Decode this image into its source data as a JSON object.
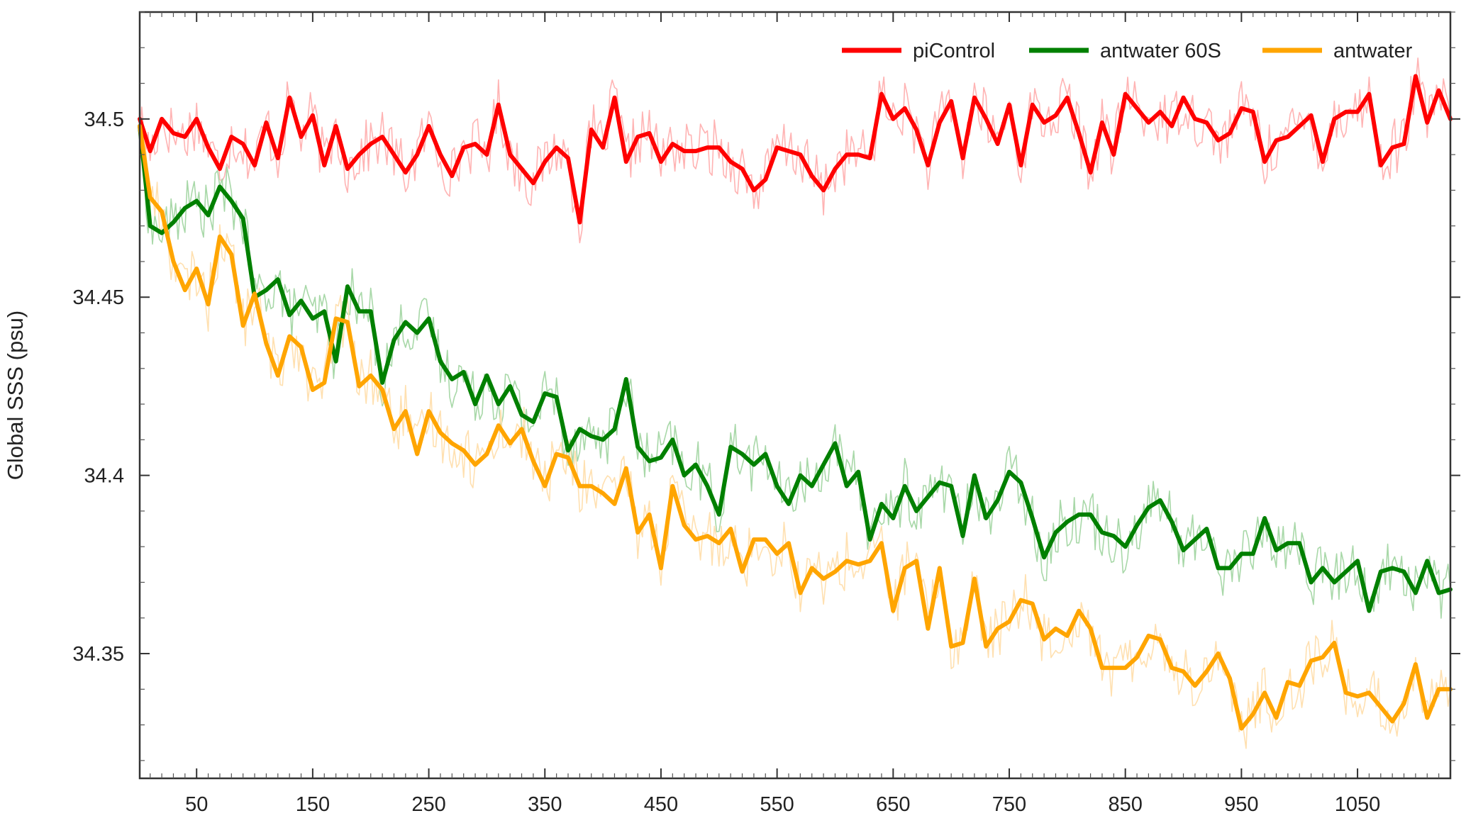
{
  "chart_data": {
    "type": "line",
    "title": "",
    "xlabel": "",
    "ylabel": "Global SSS (psu)",
    "xlim": [
      1,
      1130
    ],
    "ylim": [
      34.315,
      34.53
    ],
    "x_ticks": [
      50,
      150,
      250,
      350,
      450,
      550,
      650,
      750,
      850,
      950,
      1050
    ],
    "y_ticks": [
      34.35,
      34.4,
      34.45,
      34.5
    ],
    "y_tick_labels": [
      "34.35",
      "34.4",
      "34.45",
      "34.5"
    ],
    "grid": false,
    "legend_position": "top-right",
    "series": [
      {
        "name": "piControl",
        "color": "#ff0000",
        "faint_color": "#ffb3b3",
        "x": [
          1,
          10,
          20,
          30,
          40,
          50,
          60,
          70,
          80,
          90,
          100,
          110,
          120,
          130,
          140,
          150,
          160,
          170,
          180,
          190,
          200,
          210,
          220,
          230,
          240,
          250,
          260,
          270,
          280,
          290,
          300,
          310,
          320,
          330,
          340,
          350,
          360,
          370,
          380,
          390,
          400,
          410,
          420,
          430,
          440,
          450,
          460,
          470,
          480,
          490,
          500,
          510,
          520,
          530,
          540,
          550,
          560,
          570,
          580,
          590,
          600,
          610,
          620,
          630,
          640,
          650,
          660,
          670,
          680,
          690,
          700,
          710,
          720,
          730,
          740,
          750,
          760,
          770,
          780,
          790,
          800,
          810,
          820,
          830,
          840,
          850,
          860,
          870,
          880,
          890,
          900,
          910,
          920,
          930,
          940,
          950,
          960,
          970,
          980,
          990,
          1000,
          1010,
          1020,
          1030,
          1040,
          1050,
          1060,
          1070,
          1080,
          1090,
          1100,
          1110,
          1120,
          1130
        ],
        "values": [
          34.5,
          34.491,
          34.5,
          34.496,
          34.495,
          34.5,
          34.492,
          34.486,
          34.495,
          34.493,
          34.487,
          34.499,
          34.489,
          34.506,
          34.495,
          34.501,
          34.487,
          34.498,
          34.486,
          34.49,
          34.493,
          34.495,
          34.49,
          34.485,
          34.49,
          34.498,
          34.49,
          34.484,
          34.492,
          34.493,
          34.49,
          34.504,
          34.49,
          34.486,
          34.482,
          34.488,
          34.492,
          34.489,
          34.471,
          34.497,
          34.492,
          34.506,
          34.488,
          34.495,
          34.496,
          34.488,
          34.493,
          34.491,
          34.491,
          34.492,
          34.492,
          34.488,
          34.486,
          34.48,
          34.483,
          34.492,
          34.491,
          34.49,
          34.484,
          34.48,
          34.486,
          34.49,
          34.49,
          34.489,
          34.507,
          34.5,
          34.503,
          34.497,
          34.487,
          34.499,
          34.505,
          34.489,
          34.506,
          34.5,
          34.493,
          34.504,
          34.487,
          34.504,
          34.499,
          34.501,
          34.506,
          34.496,
          34.485,
          34.499,
          34.49,
          34.507,
          34.503,
          34.499,
          34.502,
          34.498,
          34.506,
          34.5,
          34.499,
          34.494,
          34.496,
          34.503,
          34.502,
          34.488,
          34.494,
          34.495,
          34.498,
          34.501,
          34.488,
          34.5,
          34.502,
          34.502,
          34.507,
          34.487,
          34.492,
          34.493,
          34.512,
          34.499,
          34.508,
          34.5
        ]
      },
      {
        "name": "antwater 60S",
        "color": "#008000",
        "faint_color": "#a8d8a8",
        "x": [
          1,
          10,
          20,
          30,
          40,
          50,
          60,
          70,
          80,
          90,
          100,
          110,
          120,
          130,
          140,
          150,
          160,
          170,
          180,
          190,
          200,
          210,
          220,
          230,
          240,
          250,
          260,
          270,
          280,
          290,
          300,
          310,
          320,
          330,
          340,
          350,
          360,
          370,
          380,
          390,
          400,
          410,
          420,
          430,
          440,
          450,
          460,
          470,
          480,
          490,
          500,
          510,
          520,
          530,
          540,
          550,
          560,
          570,
          580,
          590,
          600,
          610,
          620,
          630,
          640,
          650,
          660,
          670,
          680,
          690,
          700,
          710,
          720,
          730,
          740,
          750,
          760,
          770,
          780,
          790,
          800,
          810,
          820,
          830,
          840,
          850,
          860,
          870,
          880,
          890,
          900,
          910,
          920,
          930,
          940,
          950,
          960,
          970,
          980,
          990,
          1000,
          1010,
          1020,
          1030,
          1040,
          1050,
          1060,
          1070,
          1080,
          1090,
          1100,
          1110,
          1120,
          1130
        ],
        "values": [
          34.498,
          34.47,
          34.468,
          34.471,
          34.475,
          34.477,
          34.473,
          34.481,
          34.477,
          34.472,
          34.45,
          34.452,
          34.455,
          34.445,
          34.449,
          34.444,
          34.446,
          34.432,
          34.453,
          34.446,
          34.446,
          34.426,
          34.438,
          34.443,
          34.44,
          34.444,
          34.432,
          34.427,
          34.429,
          34.42,
          34.428,
          34.42,
          34.425,
          34.417,
          34.415,
          34.423,
          34.422,
          34.407,
          34.413,
          34.411,
          34.41,
          34.413,
          34.427,
          34.408,
          34.404,
          34.405,
          34.41,
          34.4,
          34.403,
          34.397,
          34.389,
          34.408,
          34.406,
          34.403,
          34.406,
          34.397,
          34.392,
          34.4,
          34.397,
          34.403,
          34.409,
          34.397,
          34.401,
          34.382,
          34.392,
          34.388,
          34.397,
          34.39,
          34.394,
          34.398,
          34.397,
          34.383,
          34.4,
          34.388,
          34.393,
          34.401,
          34.398,
          34.388,
          34.377,
          34.384,
          34.387,
          34.389,
          34.389,
          34.384,
          34.383,
          34.38,
          34.386,
          34.391,
          34.393,
          34.387,
          34.379,
          34.382,
          34.385,
          34.374,
          34.374,
          34.378,
          34.378,
          34.388,
          34.379,
          34.381,
          34.381,
          34.37,
          34.374,
          34.37,
          34.373,
          34.376,
          34.362,
          34.373,
          34.374,
          34.373,
          34.367,
          34.376,
          34.367,
          34.368
        ]
      },
      {
        "name": "antwater",
        "color": "#ffa500",
        "faint_color": "#ffe0b0",
        "x": [
          1,
          10,
          20,
          30,
          40,
          50,
          60,
          70,
          80,
          90,
          100,
          110,
          120,
          130,
          140,
          150,
          160,
          170,
          180,
          190,
          200,
          210,
          220,
          230,
          240,
          250,
          260,
          270,
          280,
          290,
          300,
          310,
          320,
          330,
          340,
          350,
          360,
          370,
          380,
          390,
          400,
          410,
          420,
          430,
          440,
          450,
          460,
          470,
          480,
          490,
          500,
          510,
          520,
          530,
          540,
          550,
          560,
          570,
          580,
          590,
          600,
          610,
          620,
          630,
          640,
          650,
          660,
          670,
          680,
          690,
          700,
          710,
          720,
          730,
          740,
          750,
          760,
          770,
          780,
          790,
          800,
          810,
          820,
          830,
          840,
          850,
          860,
          870,
          880,
          890,
          900,
          910,
          920,
          930,
          940,
          950,
          960,
          970,
          980,
          990,
          1000,
          1010,
          1020,
          1030,
          1040,
          1050,
          1060,
          1070,
          1080,
          1090,
          1100,
          1110,
          1120,
          1130
        ],
        "values": [
          34.498,
          34.478,
          34.474,
          34.46,
          34.452,
          34.458,
          34.448,
          34.467,
          34.462,
          34.442,
          34.451,
          34.437,
          34.428,
          34.439,
          34.436,
          34.424,
          34.426,
          34.444,
          34.443,
          34.425,
          34.428,
          34.424,
          34.413,
          34.418,
          34.406,
          34.418,
          34.412,
          34.409,
          34.407,
          34.403,
          34.406,
          34.414,
          34.409,
          34.413,
          34.404,
          34.397,
          34.406,
          34.405,
          34.397,
          34.397,
          34.395,
          34.392,
          34.402,
          34.384,
          34.389,
          34.374,
          34.397,
          34.386,
          34.382,
          34.383,
          34.381,
          34.385,
          34.373,
          34.382,
          34.382,
          34.378,
          34.381,
          34.367,
          34.374,
          34.371,
          34.373,
          34.376,
          34.375,
          34.376,
          34.381,
          34.362,
          34.374,
          34.376,
          34.357,
          34.374,
          34.352,
          34.353,
          34.371,
          34.352,
          34.357,
          34.359,
          34.365,
          34.364,
          34.354,
          34.357,
          34.355,
          34.362,
          34.357,
          34.346,
          34.346,
          34.346,
          34.349,
          34.355,
          34.354,
          34.346,
          34.345,
          34.341,
          34.345,
          34.35,
          34.343,
          34.329,
          34.333,
          34.339,
          34.332,
          34.342,
          34.341,
          34.348,
          34.349,
          34.353,
          34.339,
          34.338,
          34.339,
          34.335,
          34.331,
          34.336,
          34.347,
          34.332,
          34.34,
          34.34
        ]
      }
    ]
  }
}
